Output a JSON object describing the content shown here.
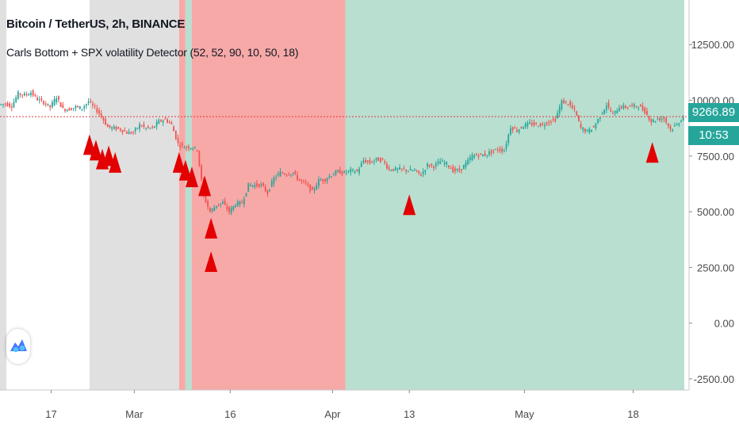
{
  "header": {
    "title": "Bitcoin / TetherUS, 2h, BINANCE",
    "indicator": "Carls Bottom + SPX volatility Detector (52, 52, 90, 10, 50, 18)"
  },
  "price_scale": {
    "last_price": "9266.89",
    "countdown": "10:53",
    "colors": {
      "tag": "#26a69a",
      "price_line": "#e53935"
    }
  },
  "logo_icon": "tradingview-logo-icon",
  "chart_data": {
    "type": "line",
    "title": "",
    "xlabel": "",
    "ylabel": "",
    "x_ticks": [
      "17",
      "Mar",
      "16",
      "Apr",
      "13",
      "May",
      "18"
    ],
    "y_ticks": [
      "12500.00",
      "10000.00",
      "7500.00",
      "5000.00",
      "2500.00",
      "0.00",
      "-2500.00"
    ],
    "ylim": [
      -3000,
      14500
    ],
    "x_range": [
      "2020-02-09",
      "2020-05-26"
    ],
    "grid": false,
    "legend": "none",
    "series": [
      {
        "points": [
          [
            "2020-02-09",
            9800
          ],
          [
            "2020-02-10",
            9850
          ],
          [
            "2020-02-11",
            9750
          ],
          [
            "2020-02-12",
            10300
          ],
          [
            "2020-02-13",
            10250
          ],
          [
            "2020-02-14",
            10350
          ],
          [
            "2020-02-15",
            10050
          ],
          [
            "2020-02-16",
            9900
          ],
          [
            "2020-02-17",
            9700
          ],
          [
            "2020-02-18",
            10150
          ],
          [
            "2020-02-19",
            9600
          ],
          [
            "2020-02-20",
            9600
          ],
          [
            "2020-02-21",
            9700
          ],
          [
            "2020-02-22",
            9650
          ],
          [
            "2020-02-23",
            9950
          ],
          [
            "2020-02-24",
            9650
          ],
          [
            "2020-02-25",
            9300
          ],
          [
            "2020-02-26",
            8800
          ],
          [
            "2020-02-27",
            8750
          ],
          [
            "2020-02-28",
            8700
          ],
          [
            "2020-02-29",
            8550
          ],
          [
            "2020-03-01",
            8550
          ],
          [
            "2020-03-02",
            8900
          ],
          [
            "2020-03-03",
            8750
          ],
          [
            "2020-03-04",
            8750
          ],
          [
            "2020-03-05",
            9050
          ],
          [
            "2020-03-06",
            9150
          ],
          [
            "2020-03-07",
            8900
          ],
          [
            "2020-03-08",
            8050
          ],
          [
            "2020-03-09",
            7900
          ],
          [
            "2020-03-10",
            7900
          ],
          [
            "2020-03-11",
            7800
          ],
          [
            "2020-03-12",
            5700
          ],
          [
            "2020-03-13",
            5000
          ],
          [
            "2020-03-14",
            5300
          ],
          [
            "2020-03-15",
            5400
          ],
          [
            "2020-03-16",
            5000
          ],
          [
            "2020-03-17",
            5350
          ],
          [
            "2020-03-18",
            5400
          ],
          [
            "2020-03-19",
            6200
          ],
          [
            "2020-03-20",
            6200
          ],
          [
            "2020-03-21",
            6200
          ],
          [
            "2020-03-22",
            5850
          ],
          [
            "2020-03-23",
            6500
          ],
          [
            "2020-03-24",
            6750
          ],
          [
            "2020-03-25",
            6700
          ],
          [
            "2020-03-26",
            6750
          ],
          [
            "2020-03-27",
            6400
          ],
          [
            "2020-03-28",
            6250
          ],
          [
            "2020-03-29",
            5900
          ],
          [
            "2020-03-30",
            6400
          ],
          [
            "2020-03-31",
            6450
          ],
          [
            "2020-04-01",
            6650
          ],
          [
            "2020-04-02",
            6800
          ],
          [
            "2020-04-03",
            6750
          ],
          [
            "2020-04-04",
            6850
          ],
          [
            "2020-04-05",
            6800
          ],
          [
            "2020-04-06",
            7300
          ],
          [
            "2020-04-07",
            7200
          ],
          [
            "2020-04-08",
            7350
          ],
          [
            "2020-04-09",
            7300
          ],
          [
            "2020-04-10",
            6900
          ],
          [
            "2020-04-11",
            6900
          ],
          [
            "2020-04-12",
            6900
          ],
          [
            "2020-04-13",
            6850
          ],
          [
            "2020-04-14",
            6850
          ],
          [
            "2020-04-15",
            6650
          ],
          [
            "2020-04-16",
            7100
          ],
          [
            "2020-04-17",
            7050
          ],
          [
            "2020-04-18",
            7250
          ],
          [
            "2020-04-19",
            7150
          ],
          [
            "2020-04-20",
            6850
          ],
          [
            "2020-04-21",
            6850
          ],
          [
            "2020-04-22",
            7150
          ],
          [
            "2020-04-23",
            7500
          ],
          [
            "2020-04-24",
            7550
          ],
          [
            "2020-04-25",
            7550
          ],
          [
            "2020-04-26",
            7700
          ],
          [
            "2020-04-27",
            7800
          ],
          [
            "2020-04-28",
            7750
          ],
          [
            "2020-04-29",
            8800
          ],
          [
            "2020-04-30",
            8650
          ],
          [
            "2020-05-01",
            8850
          ],
          [
            "2020-05-02",
            8950
          ],
          [
            "2020-05-03",
            8900
          ],
          [
            "2020-05-04",
            8900
          ],
          [
            "2020-05-05",
            9050
          ],
          [
            "2020-05-06",
            9150
          ],
          [
            "2020-05-07",
            9950
          ],
          [
            "2020-05-08",
            9850
          ],
          [
            "2020-05-09",
            9550
          ],
          [
            "2020-05-10",
            8750
          ],
          [
            "2020-05-11",
            8600
          ],
          [
            "2020-05-12",
            8800
          ],
          [
            "2020-05-13",
            9300
          ],
          [
            "2020-05-14",
            9800
          ],
          [
            "2020-05-15",
            9350
          ],
          [
            "2020-05-16",
            9700
          ],
          [
            "2020-05-17",
            9700
          ],
          [
            "2020-05-18",
            9750
          ],
          [
            "2020-05-19",
            9750
          ],
          [
            "2020-05-20",
            9500
          ],
          [
            "2020-05-21",
            9050
          ],
          [
            "2020-05-22",
            9150
          ],
          [
            "2020-05-23",
            9200
          ],
          [
            "2020-05-24",
            8700
          ],
          [
            "2020-05-25",
            8900
          ],
          [
            "2020-05-26",
            9267
          ]
        ]
      }
    ],
    "background_zones": [
      {
        "from": "2020-02-09",
        "to": "2020-02-10",
        "color": "#e0e0e0"
      },
      {
        "from": "2020-02-23",
        "to": "2020-03-08",
        "color": "#e0e0e0"
      },
      {
        "from": "2020-03-08",
        "to": "2020-03-09",
        "color": "#f7a9a8"
      },
      {
        "from": "2020-03-09",
        "to": "2020-03-10",
        "color": "#b9dfd0"
      },
      {
        "from": "2020-03-10",
        "to": "2020-04-03",
        "color": "#f7a9a8"
      },
      {
        "from": "2020-04-03",
        "to": "2020-05-26",
        "color": "#b9dfd0"
      }
    ],
    "price_line": 9267,
    "markers": [
      [
        "2020-02-23",
        7550
      ],
      [
        "2020-02-24",
        7300
      ],
      [
        "2020-02-25",
        6900
      ],
      [
        "2020-02-26",
        7050
      ],
      [
        "2020-02-27",
        6750
      ],
      [
        "2020-03-08",
        6750
      ],
      [
        "2020-03-09",
        6400
      ],
      [
        "2020-03-10",
        6100
      ],
      [
        "2020-03-12",
        5700
      ],
      [
        "2020-03-13",
        3800
      ],
      [
        "2020-03-13",
        2300
      ],
      [
        "2020-04-13",
        4850
      ],
      [
        "2020-05-21",
        7200
      ]
    ],
    "colors": {
      "up": "#26a69a",
      "down": "#ef5350",
      "marker": "#e30000"
    }
  }
}
